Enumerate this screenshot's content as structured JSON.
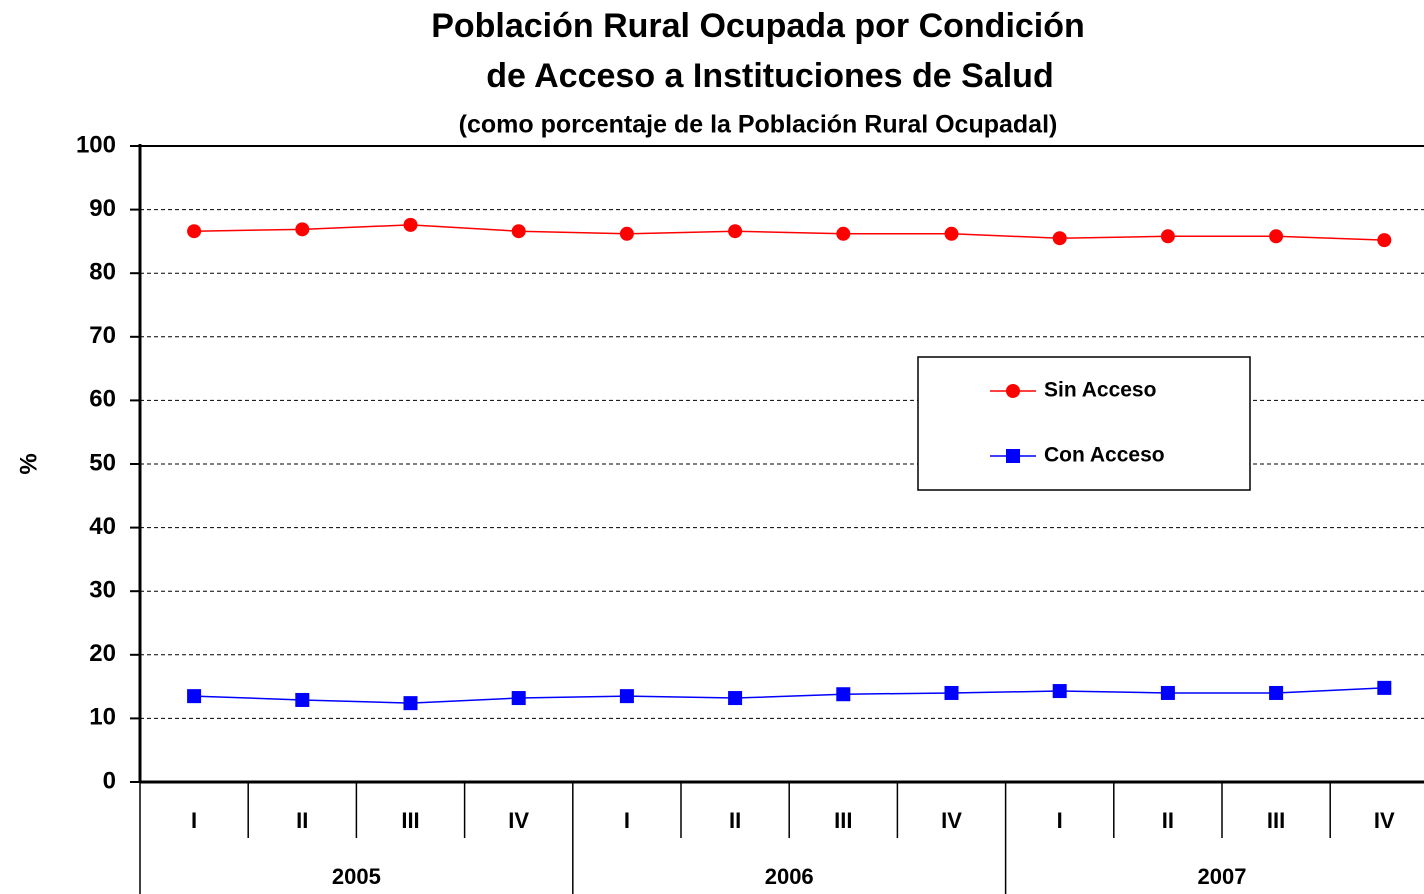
{
  "chart_data": {
    "type": "line",
    "title": [
      "Población Rural Ocupada por Condición",
      "de Acceso a Instituciones de Salud"
    ],
    "subtitle": "(como porcentaje de la Población Rural Ocupadal)",
    "y_label": "%",
    "categories": [
      "I",
      "II",
      "III",
      "IV",
      "I",
      "II",
      "III",
      "IV",
      "I",
      "II",
      "III",
      "IV"
    ],
    "x_groups": [
      "2005",
      "2006",
      "2007"
    ],
    "series": [
      {
        "name": "Sin Acceso",
        "color": "#ff0000",
        "marker": "circle",
        "values": [
          86.6,
          86.9,
          87.6,
          86.6,
          86.2,
          86.6,
          86.2,
          86.2,
          85.5,
          85.8,
          85.8,
          85.2
        ]
      },
      {
        "name": "Con Acceso",
        "color": "#0000ff",
        "marker": "square",
        "values": [
          13.5,
          12.9,
          12.4,
          13.2,
          13.5,
          13.2,
          13.8,
          14.0,
          14.3,
          14.0,
          14.0,
          14.8
        ]
      }
    ],
    "ylim": [
      0,
      100
    ],
    "yticks": [
      0,
      10,
      20,
      30,
      40,
      50,
      60,
      70,
      80,
      90,
      100
    ],
    "grid": true,
    "legend": "center-right"
  }
}
